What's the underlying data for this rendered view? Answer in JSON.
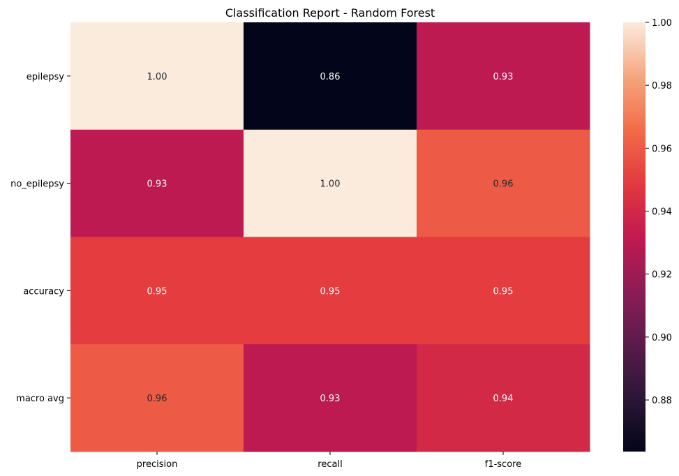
{
  "chart_data": {
    "type": "heatmap",
    "title": "Classification Report - Random Forest",
    "xlabel": "",
    "ylabel": "",
    "x_categories": [
      "precision",
      "recall",
      "f1-score"
    ],
    "y_categories": [
      "epilepsy",
      "no_epilepsy",
      "accuracy",
      "macro avg"
    ],
    "values": [
      [
        1.0,
        0.86,
        0.93
      ],
      [
        0.93,
        1.0,
        0.96
      ],
      [
        0.95,
        0.95,
        0.95
      ],
      [
        0.96,
        0.93,
        0.94
      ]
    ],
    "value_format": "2f",
    "colormap": "rocket",
    "colorbar": {
      "vmin": 0.8636,
      "vmax": 1.0,
      "ticks": [
        0.88,
        0.9,
        0.92,
        0.94,
        0.96,
        0.98,
        1.0
      ],
      "tick_labels": [
        "0.88",
        "0.90",
        "0.92",
        "0.94",
        "0.96",
        "0.98",
        "1.00"
      ]
    },
    "grid": false
  }
}
